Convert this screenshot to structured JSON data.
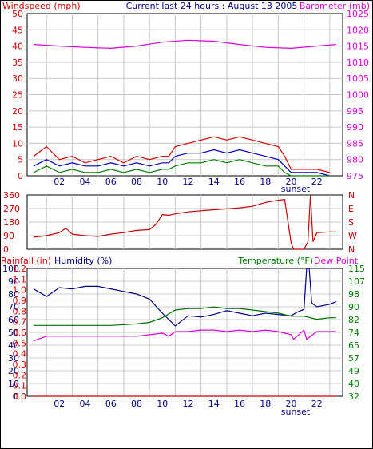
{
  "chart_data": [
    {
      "id": "wind",
      "type": "line",
      "title": "Current last 24 hours : August 13 2005",
      "left_axis_label": "Windspeed (mph)",
      "right_axis_label": "Barometer (mb)",
      "left_ticks": [
        "0",
        "5",
        "10",
        "15",
        "20",
        "25",
        "30",
        "35",
        "40",
        "45",
        "50"
      ],
      "right_ticks": [
        "975",
        "980",
        "985",
        "990",
        "995",
        "1000",
        "1005",
        "1010",
        "1015",
        "1020",
        "1025"
      ],
      "x_ticks": [
        "02",
        "04",
        "06",
        "08",
        "10",
        "12",
        "14",
        "16",
        "18",
        "20",
        "22"
      ],
      "x_label_extra": "sunset",
      "ylim_left": [
        0,
        50
      ],
      "ylim_right": [
        975,
        1025
      ],
      "grid": true,
      "series": [
        {
          "color": "#dd0000",
          "axis": "left",
          "x": [
            0,
            1,
            2,
            3,
            4,
            5,
            6,
            7,
            8,
            9,
            10,
            10.5,
            11,
            12,
            13,
            14,
            15,
            16,
            17,
            18,
            19,
            19.5,
            20,
            21,
            22,
            23
          ],
          "y": [
            6,
            9,
            5,
            6,
            4,
            5,
            6,
            4,
            6,
            5,
            6,
            6,
            9,
            10,
            11,
            12,
            11,
            12,
            11,
            10,
            9,
            6,
            2,
            2,
            2,
            1
          ]
        },
        {
          "color": "#0000cc",
          "axis": "left",
          "x": [
            0,
            1,
            2,
            3,
            4,
            5,
            6,
            7,
            8,
            9,
            10,
            10.5,
            11,
            12,
            13,
            14,
            15,
            16,
            17,
            18,
            19,
            19.5,
            20,
            21,
            22,
            23
          ],
          "y": [
            3,
            5,
            3,
            4,
            3,
            3,
            4,
            3,
            4,
            3,
            4,
            4,
            6,
            7,
            7,
            8,
            7,
            8,
            7,
            6,
            5,
            3,
            1,
            1,
            1,
            0
          ]
        },
        {
          "color": "#008000",
          "axis": "left",
          "x": [
            0,
            1,
            2,
            3,
            4,
            5,
            6,
            7,
            8,
            9,
            10,
            10.5,
            11,
            12,
            13,
            14,
            15,
            16,
            17,
            18,
            19,
            19.5,
            20,
            21,
            22,
            23
          ],
          "y": [
            1,
            3,
            1,
            2,
            1,
            1,
            2,
            1,
            2,
            1,
            2,
            2,
            3,
            4,
            4,
            5,
            4,
            5,
            4,
            3,
            3,
            1,
            0,
            0,
            0,
            0
          ]
        },
        {
          "color": "#dd00dd",
          "axis": "right",
          "x": [
            0,
            2,
            4,
            6,
            8,
            10,
            12,
            14,
            16,
            18,
            20,
            22,
            23.5
          ],
          "y": [
            1015.5,
            1015,
            1014.6,
            1014.3,
            1015,
            1016.2,
            1016.8,
            1016.5,
            1015.5,
            1014.6,
            1014.3,
            1015,
            1015.5
          ]
        }
      ]
    },
    {
      "id": "direction",
      "type": "line",
      "left_ticks": [
        "0",
        "90",
        "180",
        "270",
        "360"
      ],
      "right_ticks": [
        "N",
        "W",
        "S",
        "E",
        "N"
      ],
      "ylim": [
        0,
        360
      ],
      "grid": true,
      "series": [
        {
          "color": "#cc0000",
          "x": [
            0,
            1,
            2,
            2.5,
            3,
            4,
            5,
            6,
            7,
            8,
            9,
            9.5,
            10,
            10.5,
            11,
            12,
            13,
            14,
            15,
            16,
            17,
            18,
            19,
            19.5,
            20,
            20.2,
            21,
            21.3,
            21.5,
            21.7,
            22,
            23,
            23.5
          ],
          "y": [
            80,
            90,
            110,
            140,
            100,
            90,
            85,
            100,
            110,
            125,
            130,
            165,
            230,
            225,
            235,
            248,
            255,
            262,
            268,
            275,
            285,
            310,
            325,
            330,
            40,
            0,
            0,
            50,
            360,
            50,
            110,
            115,
            115
          ]
        }
      ]
    },
    {
      "id": "weather",
      "type": "line",
      "left_axis_label": "Rainfall (in)",
      "left2_axis_label": "Humidity (%)",
      "right_axis_label": "Temperature (°F)",
      "right2_axis_label": "Dew Point",
      "humidity_ticks": [
        "0",
        "10",
        "20",
        "30",
        "40",
        "50",
        "60",
        "70",
        "80",
        "90",
        "100"
      ],
      "rain_ticks": [
        "0.0",
        "0.1",
        "0.2",
        "0.3",
        "0.4",
        "0.5",
        "0.6",
        "0.7",
        "0.8",
        "0.9",
        "1.0",
        "1.1",
        "1.2"
      ],
      "temp_ticks": [
        "32",
        "40",
        "49",
        "57",
        "65",
        "74",
        "82",
        "90",
        "98",
        "107",
        "115"
      ],
      "x_ticks": [
        "02",
        "04",
        "06",
        "08",
        "10",
        "12",
        "14",
        "16",
        "18",
        "20",
        "22"
      ],
      "x_label_extra": "sunset",
      "ylim_humidity": [
        0,
        100
      ],
      "ylim_temp": [
        32,
        115
      ],
      "grid": true,
      "series": [
        {
          "color": "#00008b",
          "axis": "humidity",
          "x": [
            0,
            1,
            2,
            3,
            4,
            5,
            6,
            7,
            8,
            9,
            10,
            11,
            12,
            13,
            14,
            15,
            16,
            17,
            18,
            19,
            20,
            20.5,
            21,
            21.2,
            21.4,
            21.6,
            22,
            23,
            23.5
          ],
          "y": [
            84,
            78,
            85,
            84,
            86,
            86,
            84,
            82,
            80,
            76,
            65,
            55,
            63,
            62,
            64,
            67,
            65,
            63,
            65,
            64,
            63,
            66,
            68,
            100,
            100,
            73,
            70,
            72,
            74
          ]
        },
        {
          "color": "#007000",
          "axis": "temp",
          "x": [
            0,
            2,
            4,
            6,
            8,
            9,
            10,
            11,
            12,
            13,
            14,
            15,
            16,
            17,
            18,
            19,
            20,
            21,
            22,
            23,
            23.5
          ],
          "y": [
            78,
            78,
            78,
            78,
            79,
            80,
            83,
            88,
            89,
            89,
            90,
            89,
            89,
            88,
            87,
            86,
            84,
            84,
            82,
            83,
            83
          ]
        },
        {
          "color": "#dd00dd",
          "axis": "temp",
          "x": [
            0,
            1,
            2,
            4,
            6,
            8,
            9,
            10,
            10.5,
            11,
            12,
            13,
            14,
            15,
            16,
            17,
            18,
            19,
            20,
            20.2,
            21,
            21.2,
            22,
            23,
            23.5
          ],
          "y": [
            68,
            71,
            71,
            71,
            71,
            71,
            72,
            73,
            71,
            74,
            74,
            75,
            75,
            74,
            75,
            74,
            75,
            74,
            72,
            69,
            75,
            69,
            74,
            74,
            74
          ]
        },
        {
          "color": "#cc0000",
          "axis": "rain",
          "x": [
            0,
            23.5
          ],
          "y": [
            0.0,
            0.0
          ]
        }
      ]
    }
  ]
}
